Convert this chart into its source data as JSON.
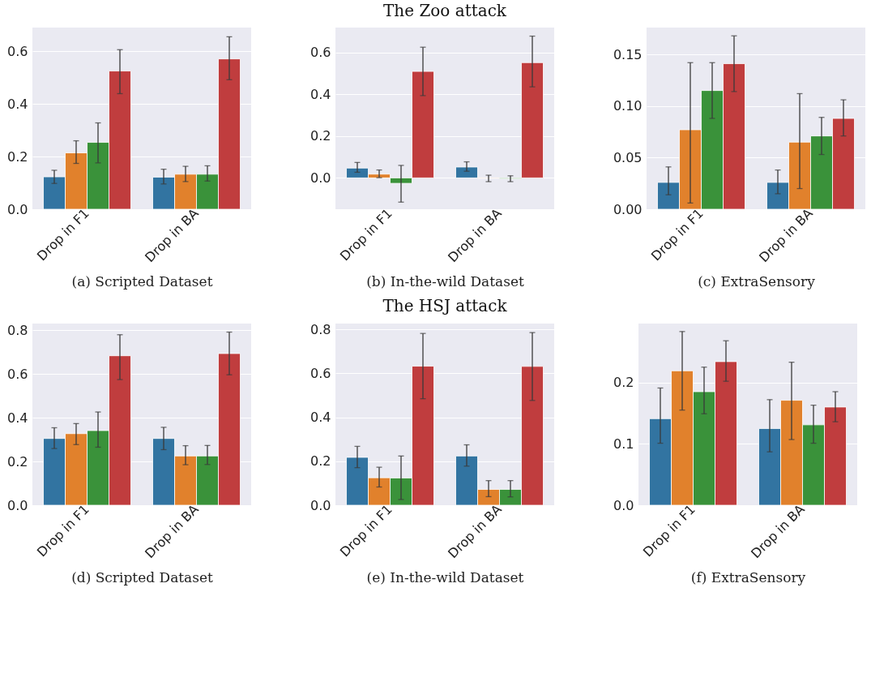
{
  "chart_data": [
    {
      "type": "bar",
      "xlabel": "(a) Scripted Dataset",
      "categories": [
        "Drop in F1",
        "Drop in BA"
      ],
      "ylim": [
        0,
        0.69
      ],
      "yticks": [
        {
          "value": 0,
          "label": "0.0"
        },
        0.2,
        0.4,
        0.6
      ],
      "grid": "y",
      "series": [
        {
          "color": "#3274a1",
          "values": [
            0.123,
            0.122
          ],
          "errors": [
            [
              0.098,
              0.148
            ],
            [
              0.096,
              0.152
            ]
          ]
        },
        {
          "color": "#e1812c",
          "values": [
            0.214,
            0.133
          ],
          "errors": [
            [
              0.174,
              0.26
            ],
            [
              0.105,
              0.163
            ]
          ]
        },
        {
          "color": "#3a923a",
          "values": [
            0.254,
            0.133
          ],
          "errors": [
            [
              0.176,
              0.328
            ],
            [
              0.107,
              0.165
            ]
          ]
        },
        {
          "color": "#c03d3e",
          "values": [
            0.525,
            0.571
          ],
          "errors": [
            [
              0.439,
              0.606
            ],
            [
              0.492,
              0.655
            ]
          ]
        }
      ]
    },
    {
      "type": "bar",
      "title": "The Zoo attack",
      "xlabel": "(b) In-the-wild Dataset",
      "categories": [
        "Drop in F1",
        "Drop in BA"
      ],
      "ylim": [
        -0.15,
        0.72
      ],
      "yticks": [
        {
          "value": 0,
          "label": "0.0"
        },
        0.2,
        0.4,
        0.6
      ],
      "grid": "y",
      "series": [
        {
          "color": "#3274a1",
          "values": [
            0.047,
            0.052
          ],
          "errors": [
            [
              0.027,
              0.074
            ],
            [
              0.032,
              0.077
            ]
          ]
        },
        {
          "color": "#e1812c",
          "values": [
            0.018,
            -0.002
          ],
          "errors": [
            [
              0.001,
              0.038
            ],
            [
              -0.018,
              0.013
            ]
          ]
        },
        {
          "color": "#3a923a",
          "values": [
            -0.026,
            -0.004
          ],
          "errors": [
            [
              -0.116,
              0.06
            ],
            [
              -0.018,
              0.01
            ]
          ]
        },
        {
          "color": "#c03d3e",
          "values": [
            0.51,
            0.552
          ],
          "errors": [
            [
              0.394,
              0.626
            ],
            [
              0.436,
              0.679
            ]
          ]
        }
      ]
    },
    {
      "type": "bar",
      "xlabel": "(c) ExtraSensory",
      "categories": [
        "Drop in F1",
        "Drop in BA"
      ],
      "ylim": [
        0,
        0.176
      ],
      "yticks": [
        {
          "value": 0,
          "label": "0.00"
        },
        {
          "value": 0.05,
          "label": "0.05"
        },
        {
          "value": 0.1,
          "label": "0.10"
        },
        {
          "value": 0.15,
          "label": "0.15"
        }
      ],
      "grid": "y",
      "series": [
        {
          "color": "#3274a1",
          "values": [
            0.026,
            0.026
          ],
          "errors": [
            [
              0.014,
              0.041
            ],
            [
              0.015,
              0.038
            ]
          ]
        },
        {
          "color": "#e1812c",
          "values": [
            0.077,
            0.065
          ],
          "errors": [
            [
              0.006,
              0.142
            ],
            [
              0.02,
              0.112
            ]
          ]
        },
        {
          "color": "#3a923a",
          "values": [
            0.115,
            0.071
          ],
          "errors": [
            [
              0.088,
              0.142
            ],
            [
              0.053,
              0.089
            ]
          ]
        },
        {
          "color": "#c03d3e",
          "values": [
            0.141,
            0.088
          ],
          "errors": [
            [
              0.114,
              0.168
            ],
            [
              0.071,
              0.106
            ]
          ]
        }
      ]
    },
    {
      "type": "bar",
      "xlabel": "(d) Scripted Dataset",
      "categories": [
        "Drop in F1",
        "Drop in BA"
      ],
      "ylim": [
        0,
        0.83
      ],
      "yticks": [
        {
          "value": 0,
          "label": "0.0"
        },
        0.2,
        0.4,
        0.6,
        0.8
      ],
      "grid": "y",
      "series": [
        {
          "color": "#3274a1",
          "values": [
            0.305,
            0.305
          ],
          "errors": [
            [
              0.259,
              0.354
            ],
            [
              0.254,
              0.356
            ]
          ]
        },
        {
          "color": "#e1812c",
          "values": [
            0.327,
            0.225
          ],
          "errors": [
            [
              0.277,
              0.373
            ],
            [
              0.185,
              0.272
            ]
          ]
        },
        {
          "color": "#3a923a",
          "values": [
            0.341,
            0.225
          ],
          "errors": [
            [
              0.265,
              0.426
            ],
            [
              0.186,
              0.273
            ]
          ]
        },
        {
          "color": "#c03d3e",
          "values": [
            0.683,
            0.693
          ],
          "errors": [
            [
              0.574,
              0.779
            ],
            [
              0.596,
              0.791
            ]
          ]
        }
      ]
    },
    {
      "type": "bar",
      "title": "The HSJ attack",
      "xlabel": "(e) In-the-wild Dataset",
      "categories": [
        "Drop in F1",
        "Drop in BA"
      ],
      "ylim": [
        0,
        0.827
      ],
      "yticks": [
        {
          "value": 0,
          "label": "0.0"
        },
        0.2,
        0.4,
        0.6,
        0.8
      ],
      "grid": "y",
      "series": [
        {
          "color": "#3274a1",
          "values": [
            0.218,
            0.224
          ],
          "errors": [
            [
              0.171,
              0.268
            ],
            [
              0.178,
              0.275
            ]
          ]
        },
        {
          "color": "#e1812c",
          "values": [
            0.125,
            0.072
          ],
          "errors": [
            [
              0.083,
              0.173
            ],
            [
              0.039,
              0.112
            ]
          ]
        },
        {
          "color": "#3a923a",
          "values": [
            0.124,
            0.072
          ],
          "errors": [
            [
              0.026,
              0.224
            ],
            [
              0.038,
              0.112
            ]
          ]
        },
        {
          "color": "#c03d3e",
          "values": [
            0.633,
            0.632
          ],
          "errors": [
            [
              0.485,
              0.782
            ],
            [
              0.477,
              0.786
            ]
          ]
        }
      ]
    },
    {
      "type": "bar",
      "xlabel": "(f) ExtraSensory",
      "categories": [
        "Drop in F1",
        "Drop in BA"
      ],
      "ylim": [
        0,
        0.296
      ],
      "yticks": [
        {
          "value": 0,
          "label": "0.0"
        },
        0.1,
        0.2
      ],
      "grid": "y",
      "series": [
        {
          "color": "#3274a1",
          "values": [
            0.141,
            0.125
          ],
          "errors": [
            [
              0.101,
              0.191
            ],
            [
              0.087,
              0.172
            ]
          ]
        },
        {
          "color": "#e1812c",
          "values": [
            0.219,
            0.171
          ],
          "errors": [
            [
              0.155,
              0.283
            ],
            [
              0.107,
              0.233
            ]
          ]
        },
        {
          "color": "#3a923a",
          "values": [
            0.185,
            0.131
          ],
          "errors": [
            [
              0.149,
              0.225
            ],
            [
              0.101,
              0.163
            ]
          ]
        },
        {
          "color": "#c03d3e",
          "values": [
            0.234,
            0.16
          ],
          "errors": [
            [
              0.202,
              0.268
            ],
            [
              0.136,
              0.185
            ]
          ]
        }
      ]
    }
  ]
}
